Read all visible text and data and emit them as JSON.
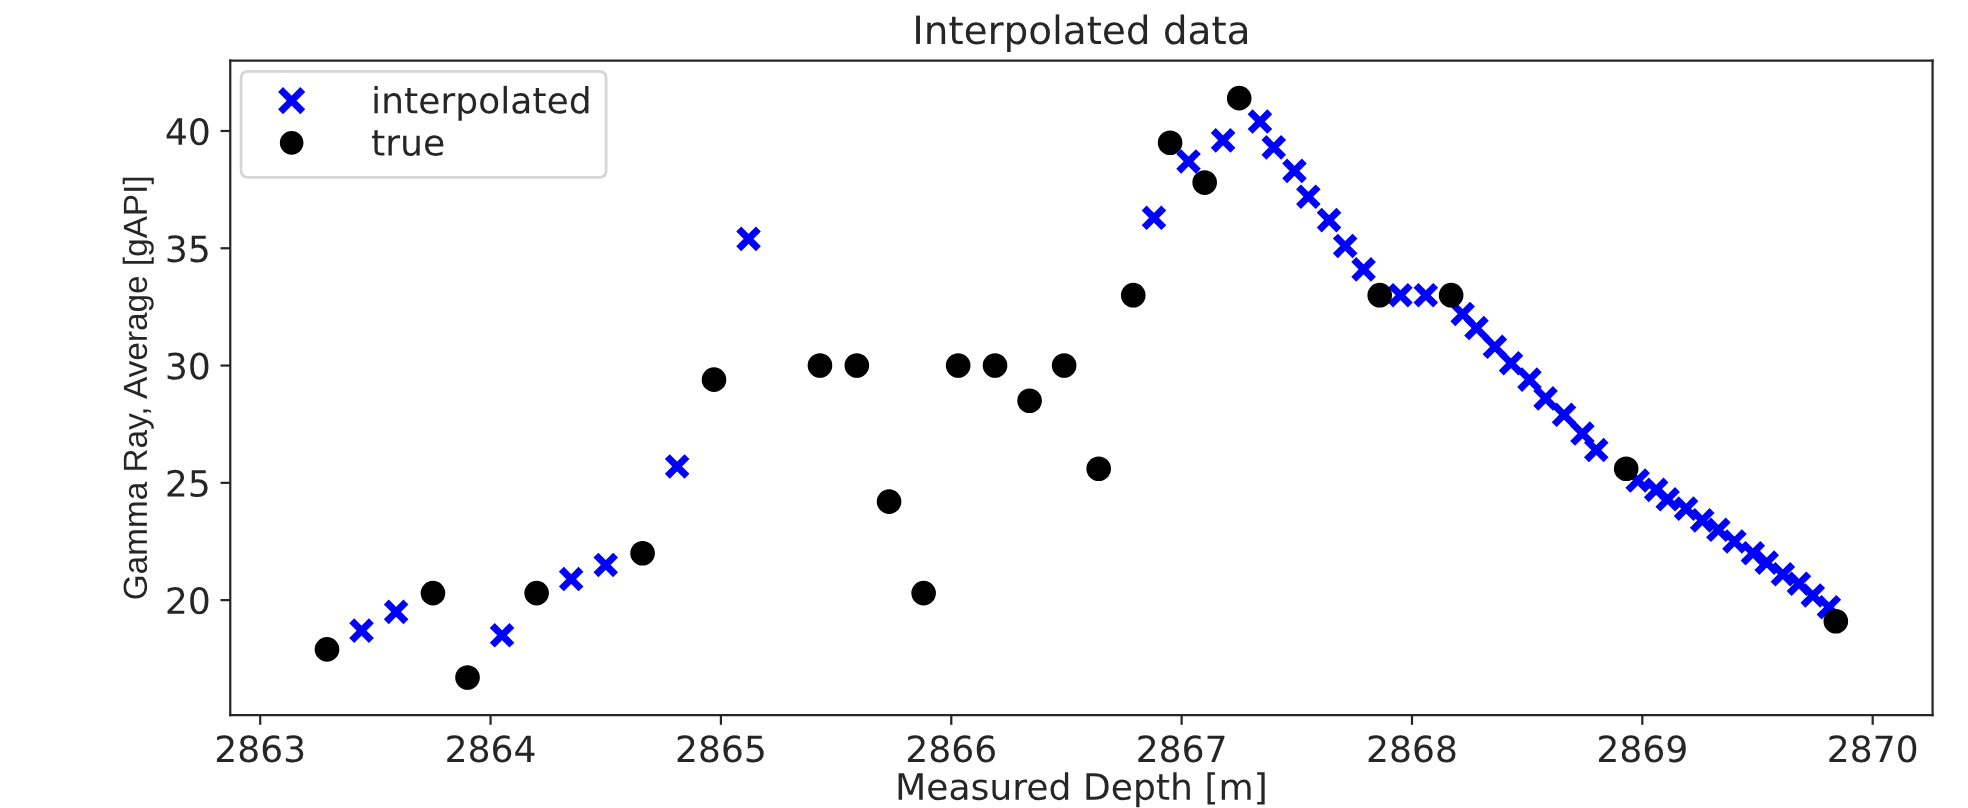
{
  "chart_data": {
    "type": "scatter",
    "title": "Interpolated data",
    "xlabel": "Measured Depth [m]",
    "ylabel": "Gamma Ray, Average [gAPI]",
    "xlim": [
      2862.87,
      2870.26
    ],
    "ylim": [
      15.1,
      43
    ],
    "xticks": [
      2863,
      2864,
      2865,
      2866,
      2867,
      2868,
      2869,
      2870
    ],
    "yticks": [
      20,
      25,
      30,
      35,
      40
    ],
    "grid": false,
    "legend": "top left",
    "series": [
      {
        "name": "interpolated",
        "color": "#0000ff",
        "marker": "cross",
        "x": [
          2863.44,
          2863.59,
          2864.05,
          2864.35,
          2864.5,
          2864.81,
          2865.12,
          2866.88,
          2867.03,
          2867.18,
          2867.34,
          2867.4,
          2867.49,
          2867.55,
          2867.64,
          2867.71,
          2867.79,
          2867.95,
          2868.0,
          2868.06,
          2868.22,
          2868.28,
          2868.36,
          2868.43,
          2868.51,
          2868.58,
          2868.66,
          2868.74,
          2868.8,
          2868.98,
          2869.06,
          2869.11,
          2869.19,
          2869.26,
          2869.33,
          2869.4,
          2869.48,
          2869.54,
          2869.61,
          2869.68,
          2869.74,
          2869.81
        ],
        "values": [
          18.7,
          19.5,
          18.5,
          20.9,
          21.5,
          25.7,
          35.4,
          36.3,
          38.7,
          39.6,
          40.4,
          39.3,
          38.3,
          37.2,
          36.2,
          35.1,
          34.1,
          33.0,
          null,
          33.0,
          32.2,
          31.6,
          30.8,
          30.1,
          29.4,
          28.6,
          27.9,
          27.1,
          26.4,
          25.1,
          24.7,
          24.3,
          23.9,
          23.4,
          23.0,
          22.5,
          22.0,
          21.6,
          21.1,
          20.7,
          20.2,
          19.7
        ]
      },
      {
        "name": "true",
        "color": "#000000",
        "marker": "circle",
        "x": [
          2863.29,
          2863.75,
          2863.9,
          2864.2,
          2864.66,
          2864.97,
          2865.43,
          2865.59,
          2865.73,
          2865.88,
          2866.03,
          2866.19,
          2866.34,
          2866.49,
          2866.64,
          2866.79,
          2866.95,
          2867.1,
          2867.25,
          2867.86,
          2868.17,
          2868.93,
          2869.84
        ],
        "values": [
          17.9,
          20.3,
          16.7,
          20.3,
          22.0,
          29.4,
          30.0,
          30.0,
          24.2,
          20.3,
          30.0,
          30.0,
          28.5,
          30.0,
          25.6,
          33.0,
          39.5,
          37.8,
          41.4,
          33.0,
          33.0,
          25.6,
          19.1
        ]
      }
    ]
  }
}
